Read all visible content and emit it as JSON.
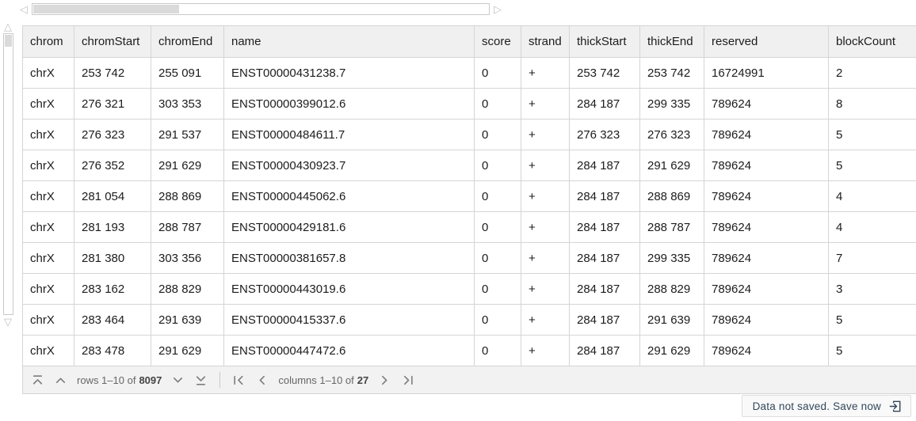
{
  "table": {
    "columns": [
      "chrom",
      "chromStart",
      "chromEnd",
      "name",
      "score",
      "strand",
      "thickStart",
      "thickEnd",
      "reserved",
      "blockCount"
    ],
    "rows": [
      [
        "chrX",
        "253 742",
        "255 091",
        "ENST00000431238.7",
        "0",
        "+",
        "253 742",
        "253 742",
        "16724991",
        "2"
      ],
      [
        "chrX",
        "276 321",
        "303 353",
        "ENST00000399012.6",
        "0",
        "+",
        "284 187",
        "299 335",
        "789624",
        "8"
      ],
      [
        "chrX",
        "276 323",
        "291 537",
        "ENST00000484611.7",
        "0",
        "+",
        "276 323",
        "276 323",
        "789624",
        "5"
      ],
      [
        "chrX",
        "276 352",
        "291 629",
        "ENST00000430923.7",
        "0",
        "+",
        "284 187",
        "291 629",
        "789624",
        "5"
      ],
      [
        "chrX",
        "281 054",
        "288 869",
        "ENST00000445062.6",
        "0",
        "+",
        "284 187",
        "288 869",
        "789624",
        "4"
      ],
      [
        "chrX",
        "281 193",
        "288 787",
        "ENST00000429181.6",
        "0",
        "+",
        "284 187",
        "288 787",
        "789624",
        "4"
      ],
      [
        "chrX",
        "281 380",
        "303 356",
        "ENST00000381657.8",
        "0",
        "+",
        "284 187",
        "299 335",
        "789624",
        "7"
      ],
      [
        "chrX",
        "283 162",
        "288 829",
        "ENST00000443019.6",
        "0",
        "+",
        "284 187",
        "288 829",
        "789624",
        "3"
      ],
      [
        "chrX",
        "283 464",
        "291 639",
        "ENST00000415337.6",
        "0",
        "+",
        "284 187",
        "291 639",
        "789624",
        "5"
      ],
      [
        "chrX",
        "283 478",
        "291 629",
        "ENST00000447472.6",
        "0",
        "+",
        "284 187",
        "291 629",
        "789624",
        "5"
      ]
    ]
  },
  "pagination": {
    "rows_prefix": "rows 1–10 of",
    "rows_total": "8097",
    "cols_prefix": "columns 1–10 of",
    "cols_total": "27"
  },
  "save_bar": {
    "label": "Data not saved. Save now"
  },
  "icons": {
    "scroll_left": "◁",
    "scroll_right": "▷",
    "scroll_up": "△",
    "scroll_down": "▽"
  },
  "colors": {
    "accent_navy": "#33475b",
    "header_bg": "#f0f0f0",
    "border": "#d5d5d5",
    "scrollbar_thumb": "#dadada"
  }
}
